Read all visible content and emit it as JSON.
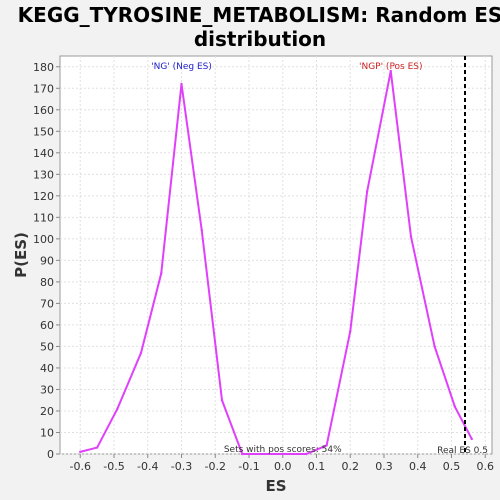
{
  "chart_data": {
    "type": "line",
    "title_line1": "KEGG_TYROSINE_METABOLISM: Random ES",
    "title_line2": "distribution",
    "xlabel": "ES",
    "ylabel": "P(ES)",
    "xlim": [
      -0.66,
      0.62
    ],
    "ylim": [
      0,
      185
    ],
    "x_ticks": [
      -0.6,
      -0.5,
      -0.4,
      -0.3,
      -0.2,
      -0.1,
      0.0,
      0.1,
      0.2,
      0.3,
      0.4,
      0.5,
      0.6
    ],
    "x_tick_labels": [
      "-0.6",
      "-0.5",
      "-0.4",
      "-0.3",
      "-0.2",
      "-0.1",
      "0.0",
      "0.1",
      "0.2",
      "0.3",
      "0.4",
      "0.5",
      "0.6"
    ],
    "y_ticks": [
      0,
      10,
      20,
      30,
      40,
      50,
      60,
      70,
      80,
      90,
      100,
      110,
      120,
      130,
      140,
      150,
      160,
      170,
      180
    ],
    "y_tick_labels": [
      "0",
      "10",
      "20",
      "30",
      "40",
      "50",
      "60",
      "70",
      "80",
      "90",
      "100",
      "110",
      "120",
      "130",
      "140",
      "150",
      "160",
      "170",
      "180"
    ],
    "grid": true,
    "series": [
      {
        "color": "#e040fb",
        "x": [
          -0.6,
          -0.55,
          -0.49,
          -0.42,
          -0.36,
          -0.3,
          -0.24,
          -0.18,
          -0.12,
          0.0,
          0.07,
          0.13,
          0.2,
          0.25,
          0.32,
          0.38,
          0.45,
          0.51,
          0.56
        ],
        "y": [
          1,
          3,
          21,
          47,
          84,
          172,
          104,
          25,
          0,
          0,
          0,
          4,
          57,
          122,
          178,
          101,
          50,
          22,
          7
        ]
      }
    ],
    "real_es": 0.54,
    "annotations": {
      "neg": {
        "text": "'NG' (Neg ES)",
        "color": "#2222cc"
      },
      "pos": {
        "text": "'NGP' (Pos ES)",
        "color": "#cc2222"
      },
      "sets": {
        "text": "Sets with pos scores: 54%",
        "color": "#333333"
      },
      "real": {
        "text": "Real ES 0.5",
        "color": "#333333"
      }
    }
  }
}
